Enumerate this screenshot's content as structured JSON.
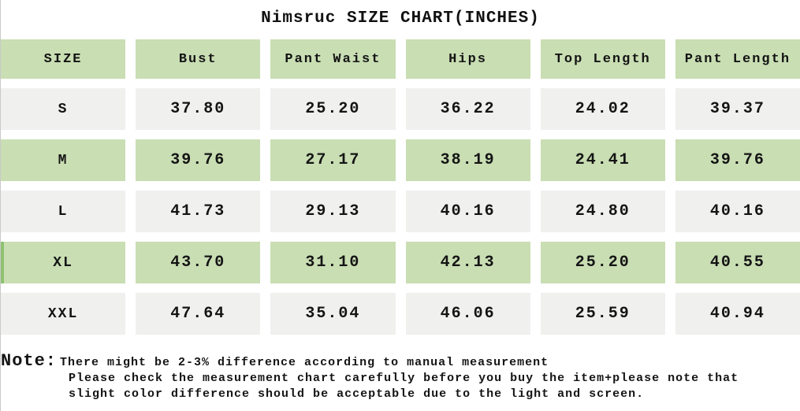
{
  "title": "Nimsruc SIZE CHART(INCHES)",
  "table": {
    "headers": [
      "SIZE",
      "Bust",
      "Pant Waist",
      "Hips",
      "Top Length",
      "Pant Length"
    ],
    "rows": [
      {
        "size": "S",
        "values": [
          "37.80",
          "25.20",
          "36.22",
          "24.02",
          "39.37"
        ]
      },
      {
        "size": "M",
        "values": [
          "39.76",
          "27.17",
          "38.19",
          "24.41",
          "39.76"
        ]
      },
      {
        "size": "L",
        "values": [
          "41.73",
          "29.13",
          "40.16",
          "24.80",
          "40.16"
        ]
      },
      {
        "size": "XL",
        "values": [
          "43.70",
          "31.10",
          "42.13",
          "25.20",
          "40.55"
        ]
      },
      {
        "size": "XXL",
        "values": [
          "47.64",
          "35.04",
          "46.06",
          "25.59",
          "40.94"
        ]
      }
    ]
  },
  "note": {
    "label": "Note:",
    "lines": [
      "There might be 2-3% difference according to manual measurement",
      "Please check the measurement chart carefully before you buy the item+please note that",
      "slight color difference should be acceptable due to the light and screen."
    ]
  },
  "colors": {
    "row_green": "#c9deb3",
    "row_gray": "#f0f0ee",
    "accent_strip": "#8fc271",
    "text": "#141414"
  }
}
